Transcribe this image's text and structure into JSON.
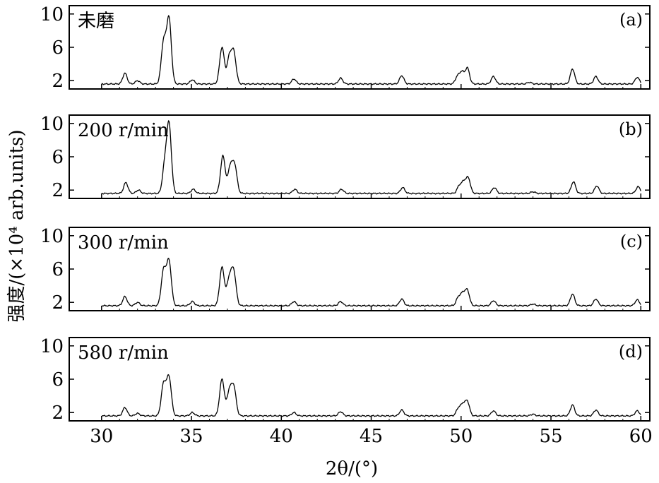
{
  "chart_data": {
    "type": "line",
    "xlabel": "2θ/(°)",
    "ylabel": "强度/(×10⁴ arb.units)",
    "xlim": [
      28.2,
      60.5
    ],
    "ylim": [
      1,
      11
    ],
    "x_ticks": [
      30,
      35,
      40,
      45,
      50,
      55,
      60
    ],
    "y_ticks": [
      2,
      6,
      10
    ],
    "baseline": 1.6,
    "grid": false,
    "panels": [
      {
        "tag": "(a)",
        "title": "未磨",
        "peaks": [
          {
            "x": 31.3,
            "h": 1.3
          },
          {
            "x": 32.0,
            "h": 0.4
          },
          {
            "x": 33.45,
            "h": 5.0
          },
          {
            "x": 33.75,
            "h": 7.8
          },
          {
            "x": 35.05,
            "h": 0.5
          },
          {
            "x": 36.7,
            "h": 4.4
          },
          {
            "x": 37.1,
            "h": 3.0
          },
          {
            "x": 37.35,
            "h": 3.8
          },
          {
            "x": 40.7,
            "h": 0.6
          },
          {
            "x": 43.3,
            "h": 0.7
          },
          {
            "x": 46.7,
            "h": 1.0
          },
          {
            "x": 49.8,
            "h": 0.9
          },
          {
            "x": 50.05,
            "h": 1.4
          },
          {
            "x": 50.35,
            "h": 1.9
          },
          {
            "x": 51.8,
            "h": 0.9
          },
          {
            "x": 53.8,
            "h": 0.2
          },
          {
            "x": 56.2,
            "h": 1.8
          },
          {
            "x": 57.5,
            "h": 0.9
          },
          {
            "x": 59.8,
            "h": 0.8
          }
        ]
      },
      {
        "tag": "(b)",
        "title": "200 r/min",
        "peaks": [
          {
            "x": 31.35,
            "h": 1.3
          },
          {
            "x": 32.05,
            "h": 0.4
          },
          {
            "x": 33.5,
            "h": 3.0
          },
          {
            "x": 33.75,
            "h": 8.3
          },
          {
            "x": 35.1,
            "h": 0.5
          },
          {
            "x": 36.75,
            "h": 4.5
          },
          {
            "x": 37.15,
            "h": 3.0
          },
          {
            "x": 37.4,
            "h": 3.4
          },
          {
            "x": 40.75,
            "h": 0.5
          },
          {
            "x": 43.35,
            "h": 0.5
          },
          {
            "x": 46.75,
            "h": 0.7
          },
          {
            "x": 49.9,
            "h": 0.9
          },
          {
            "x": 50.15,
            "h": 1.3
          },
          {
            "x": 50.4,
            "h": 1.8
          },
          {
            "x": 51.85,
            "h": 0.7
          },
          {
            "x": 54.0,
            "h": 0.2
          },
          {
            "x": 56.25,
            "h": 1.4
          },
          {
            "x": 57.55,
            "h": 0.9
          },
          {
            "x": 59.85,
            "h": 0.8
          }
        ]
      },
      {
        "tag": "(c)",
        "title": "300 r/min",
        "peaks": [
          {
            "x": 31.3,
            "h": 1.1
          },
          {
            "x": 32.0,
            "h": 0.4
          },
          {
            "x": 33.45,
            "h": 4.2
          },
          {
            "x": 33.75,
            "h": 5.3
          },
          {
            "x": 35.05,
            "h": 0.5
          },
          {
            "x": 36.7,
            "h": 4.6
          },
          {
            "x": 37.1,
            "h": 3.1
          },
          {
            "x": 37.35,
            "h": 4.0
          },
          {
            "x": 40.7,
            "h": 0.5
          },
          {
            "x": 43.3,
            "h": 0.5
          },
          {
            "x": 46.7,
            "h": 0.8
          },
          {
            "x": 49.85,
            "h": 1.0
          },
          {
            "x": 50.1,
            "h": 1.4
          },
          {
            "x": 50.35,
            "h": 1.8
          },
          {
            "x": 51.8,
            "h": 0.6
          },
          {
            "x": 54.0,
            "h": 0.2
          },
          {
            "x": 56.2,
            "h": 1.4
          },
          {
            "x": 57.5,
            "h": 0.8
          },
          {
            "x": 59.8,
            "h": 0.7
          }
        ]
      },
      {
        "tag": "(d)",
        "title": "580 r/min",
        "peaks": [
          {
            "x": 31.3,
            "h": 1.0
          },
          {
            "x": 32.0,
            "h": 0.3
          },
          {
            "x": 33.45,
            "h": 3.8
          },
          {
            "x": 33.75,
            "h": 4.6
          },
          {
            "x": 35.05,
            "h": 0.4
          },
          {
            "x": 36.7,
            "h": 4.4
          },
          {
            "x": 37.1,
            "h": 2.8
          },
          {
            "x": 37.35,
            "h": 3.5
          },
          {
            "x": 40.7,
            "h": 0.4
          },
          {
            "x": 43.3,
            "h": 0.5
          },
          {
            "x": 46.7,
            "h": 0.7
          },
          {
            "x": 49.85,
            "h": 0.9
          },
          {
            "x": 50.1,
            "h": 1.3
          },
          {
            "x": 50.35,
            "h": 1.7
          },
          {
            "x": 51.8,
            "h": 0.6
          },
          {
            "x": 54.0,
            "h": 0.2
          },
          {
            "x": 56.2,
            "h": 1.3
          },
          {
            "x": 57.5,
            "h": 0.7
          },
          {
            "x": 59.8,
            "h": 0.6
          }
        ]
      }
    ]
  }
}
